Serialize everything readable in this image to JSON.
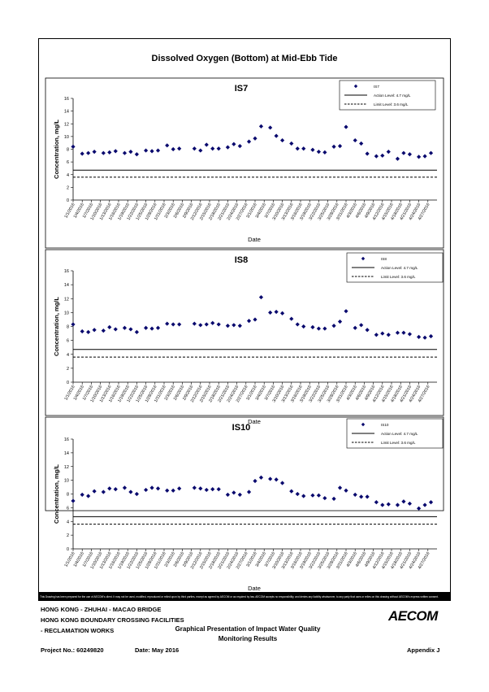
{
  "page": {
    "main_title": "Dissolved Oxygen (Bottom) at Mid-Ebb Tide",
    "notice": "This Drawing has been prepared for the use of AECOM's client. It may not be used, modified, reproduced or relied upon by third parties, except as agreed by AECOM or as required by law. AECOM accepts no responsibility, and denies any liability whatsoever, to any party that uses or relies on this drawing without AECOM's express written consent.",
    "footer": {
      "line1": "HONG KONG - ZHUHAI - MACAO BRIDGE",
      "line2": "HONG KONG BOUNDARY CROSSING FACILITIES",
      "line3": "- RECLAMATION WORKS",
      "center_line1": "Graphical Presentation of Impact Water Quality",
      "center_line2": "Monitoring Results",
      "project": "Project No.: 60249820",
      "date": "Date: May 2016",
      "appendix": "Appendix J",
      "logo": "AECOM"
    }
  },
  "chart_data": [
    {
      "type": "scatter",
      "title": "IS7",
      "xlabel": "Date",
      "ylabel": "Concentration, mg/L",
      "ylim": [
        0,
        16
      ],
      "yticks": [
        0,
        2,
        4,
        6,
        8,
        10,
        12,
        14,
        16
      ],
      "x_start": "1/1/2016",
      "xticks": [
        "1/1/2016",
        "1/4/2016",
        "1/7/2016",
        "1/10/2016",
        "1/13/2016",
        "1/16/2016",
        "1/19/2016",
        "1/22/2016",
        "1/25/2016",
        "1/28/2016",
        "1/31/2016",
        "2/3/2016",
        "2/6/2016",
        "2/9/2016",
        "2/12/2016",
        "2/15/2016",
        "2/18/2016",
        "2/21/2016",
        "2/24/2016",
        "2/27/2016",
        "3/1/2016",
        "3/4/2016",
        "3/7/2016",
        "3/10/2016",
        "3/13/2016",
        "3/16/2016",
        "3/19/2016",
        "3/22/2016",
        "3/25/2016",
        "3/28/2016",
        "3/31/2016",
        "4/3/2016",
        "4/6/2016",
        "4/9/2016",
        "4/12/2016",
        "4/15/2016",
        "4/18/2016",
        "4/21/2016",
        "4/24/2016",
        "4/27/2016"
      ],
      "legend": [
        "IS7",
        "Action Level: 4.7 mg/L",
        "Limit Level: 3.6 mg/L"
      ],
      "legend_position": "top-right",
      "action_level": 4.7,
      "limit_level": 3.6,
      "x": [
        "1/1/2016",
        "1/4/2016",
        "1/6/2016",
        "1/8/2016",
        "1/11/2016",
        "1/13/2016",
        "1/15/2016",
        "1/18/2016",
        "1/20/2016",
        "1/22/2016",
        "1/25/2016",
        "1/27/2016",
        "1/29/2016",
        "2/1/2016",
        "2/3/2016",
        "2/5/2016",
        "2/10/2016",
        "2/12/2016",
        "2/14/2016",
        "2/16/2016",
        "2/18/2016",
        "2/21/2016",
        "2/23/2016",
        "2/25/2016",
        "2/28/2016",
        "3/1/2016",
        "3/3/2016",
        "3/6/2016",
        "3/8/2016",
        "3/10/2016",
        "3/13/2016",
        "3/15/2016",
        "3/17/2016",
        "3/20/2016",
        "3/22/2016",
        "3/24/2016",
        "3/27/2016",
        "3/29/2016",
        "3/31/2016",
        "4/3/2016",
        "4/5/2016",
        "4/7/2016",
        "4/10/2016",
        "4/12/2016",
        "4/14/2016",
        "4/17/2016",
        "4/19/2016",
        "4/21/2016",
        "4/24/2016",
        "4/26/2016",
        "4/28/2016"
      ],
      "y": [
        8.4,
        7.3,
        7.4,
        7.6,
        7.4,
        7.5,
        7.7,
        7.4,
        7.6,
        7.2,
        7.8,
        7.7,
        7.8,
        8.6,
        8.0,
        8.1,
        8.1,
        7.8,
        8.7,
        8.1,
        8.1,
        8.3,
        8.8,
        8.5,
        9.2,
        9.7,
        11.6,
        11.4,
        10.1,
        9.4,
        8.9,
        8.1,
        8.1,
        7.9,
        7.6,
        7.5,
        8.4,
        8.5,
        11.5,
        9.4,
        8.9,
        7.3,
        6.9,
        7.0,
        7.6,
        6.5,
        7.4,
        7.2,
        6.8,
        6.9,
        7.4
      ]
    },
    {
      "type": "scatter",
      "title": "IS8",
      "xlabel": "Date",
      "ylabel": "Concentration, mg/L",
      "ylim": [
        0,
        16
      ],
      "yticks": [
        0,
        2,
        4,
        6,
        8,
        10,
        12,
        14,
        16
      ],
      "x_start": "1/1/2016",
      "xticks": [
        "1/1/2016",
        "1/4/2016",
        "1/7/2016",
        "1/10/2016",
        "1/13/2016",
        "1/16/2016",
        "1/19/2016",
        "1/22/2016",
        "1/25/2016",
        "1/28/2016",
        "1/31/2016",
        "2/3/2016",
        "2/6/2016",
        "2/9/2016",
        "2/12/2016",
        "2/15/2016",
        "2/18/2016",
        "2/21/2016",
        "2/24/2016",
        "2/27/2016",
        "3/1/2016",
        "3/4/2016",
        "3/7/2016",
        "3/10/2016",
        "3/13/2016",
        "3/16/2016",
        "3/19/2016",
        "3/22/2016",
        "3/25/2016",
        "3/28/2016",
        "3/31/2016",
        "4/3/2016",
        "4/6/2016",
        "4/9/2016",
        "4/12/2016",
        "4/15/2016",
        "4/18/2016",
        "4/21/2016",
        "4/24/2016",
        "4/27/2016"
      ],
      "legend": [
        "IS8",
        "Action Level: 4.7 mg/L",
        "Limit Level: 3.6 mg/L"
      ],
      "legend_position": "top-right",
      "action_level": 4.7,
      "limit_level": 3.6,
      "x": [
        "1/1/2016",
        "1/4/2016",
        "1/6/2016",
        "1/8/2016",
        "1/11/2016",
        "1/13/2016",
        "1/15/2016",
        "1/18/2016",
        "1/20/2016",
        "1/22/2016",
        "1/25/2016",
        "1/27/2016",
        "1/29/2016",
        "2/1/2016",
        "2/3/2016",
        "2/5/2016",
        "2/10/2016",
        "2/12/2016",
        "2/14/2016",
        "2/16/2016",
        "2/18/2016",
        "2/21/2016",
        "2/23/2016",
        "2/25/2016",
        "2/28/2016",
        "3/1/2016",
        "3/3/2016",
        "3/6/2016",
        "3/8/2016",
        "3/10/2016",
        "3/13/2016",
        "3/15/2016",
        "3/17/2016",
        "3/20/2016",
        "3/22/2016",
        "3/24/2016",
        "3/27/2016",
        "3/29/2016",
        "3/31/2016",
        "4/3/2016",
        "4/5/2016",
        "4/7/2016",
        "4/10/2016",
        "4/12/2016",
        "4/14/2016",
        "4/17/2016",
        "4/19/2016",
        "4/21/2016",
        "4/24/2016",
        "4/26/2016",
        "4/28/2016"
      ],
      "y": [
        8.3,
        7.3,
        7.2,
        7.5,
        7.4,
        7.9,
        7.6,
        7.8,
        7.6,
        7.2,
        7.8,
        7.7,
        7.8,
        8.4,
        8.3,
        8.3,
        8.4,
        8.2,
        8.3,
        8.5,
        8.3,
        8.1,
        8.2,
        8.1,
        8.8,
        9.0,
        12.2,
        10.0,
        10.1,
        9.9,
        9.1,
        8.3,
        8.0,
        7.9,
        7.7,
        7.7,
        8.1,
        8.7,
        10.2,
        7.8,
        8.2,
        7.5,
        6.8,
        7.0,
        6.8,
        7.1,
        7.1,
        6.9,
        6.5,
        6.4,
        6.6
      ]
    },
    {
      "type": "scatter",
      "title": "IS10",
      "xlabel": "Date",
      "ylabel": "Concentration, mg/L",
      "ylim": [
        0,
        16
      ],
      "yticks": [
        0,
        2,
        4,
        6,
        8,
        10,
        12,
        14,
        16
      ],
      "x_start": "1/1/2016",
      "xticks": [
        "1/1/2016",
        "1/4/2016",
        "1/7/2016",
        "1/10/2016",
        "1/13/2016",
        "1/16/2016",
        "1/19/2016",
        "1/22/2016",
        "1/25/2016",
        "1/28/2016",
        "1/31/2016",
        "2/3/2016",
        "2/6/2016",
        "2/9/2016",
        "2/12/2016",
        "2/15/2016",
        "2/18/2016",
        "2/21/2016",
        "2/24/2016",
        "2/27/2016",
        "3/1/2016",
        "3/4/2016",
        "3/7/2016",
        "3/10/2016",
        "3/13/2016",
        "3/16/2016",
        "3/19/2016",
        "3/22/2016",
        "3/25/2016",
        "3/28/2016",
        "3/31/2016",
        "4/3/2016",
        "4/6/2016",
        "4/9/2016",
        "4/12/2016",
        "4/15/2016",
        "4/18/2016",
        "4/21/2016",
        "4/24/2016",
        "4/27/2016"
      ],
      "legend": [
        "IS10",
        "Action Level: 4.7 mg/L",
        "Limit Level: 3.6 mg/L"
      ],
      "legend_position": "top-right",
      "action_level": 4.7,
      "limit_level": 3.6,
      "x": [
        "1/1/2016",
        "1/4/2016",
        "1/6/2016",
        "1/8/2016",
        "1/11/2016",
        "1/13/2016",
        "1/15/2016",
        "1/18/2016",
        "1/20/2016",
        "1/22/2016",
        "1/25/2016",
        "1/27/2016",
        "1/29/2016",
        "2/1/2016",
        "2/3/2016",
        "2/5/2016",
        "2/10/2016",
        "2/12/2016",
        "2/14/2016",
        "2/16/2016",
        "2/18/2016",
        "2/21/2016",
        "2/23/2016",
        "2/25/2016",
        "2/28/2016",
        "3/1/2016",
        "3/3/2016",
        "3/6/2016",
        "3/8/2016",
        "3/10/2016",
        "3/13/2016",
        "3/15/2016",
        "3/17/2016",
        "3/20/2016",
        "3/22/2016",
        "3/24/2016",
        "3/27/2016",
        "3/29/2016",
        "3/31/2016",
        "4/3/2016",
        "4/5/2016",
        "4/7/2016",
        "4/10/2016",
        "4/12/2016",
        "4/14/2016",
        "4/17/2016",
        "4/19/2016",
        "4/21/2016",
        "4/24/2016",
        "4/26/2016",
        "4/28/2016"
      ],
      "y": [
        7.0,
        7.9,
        7.7,
        8.4,
        8.3,
        8.8,
        8.7,
        8.9,
        8.3,
        8.0,
        8.6,
        8.9,
        8.8,
        8.5,
        8.5,
        8.8,
        8.9,
        8.8,
        8.6,
        8.7,
        8.7,
        7.9,
        8.2,
        7.9,
        8.3,
        9.9,
        10.4,
        10.2,
        10.1,
        9.6,
        8.4,
        8.0,
        7.7,
        7.8,
        7.8,
        7.4,
        7.3,
        8.9,
        8.5,
        7.9,
        7.6,
        7.6,
        6.8,
        6.4,
        6.5,
        6.4,
        6.9,
        6.6,
        5.9,
        6.4,
        6.8
      ]
    }
  ]
}
